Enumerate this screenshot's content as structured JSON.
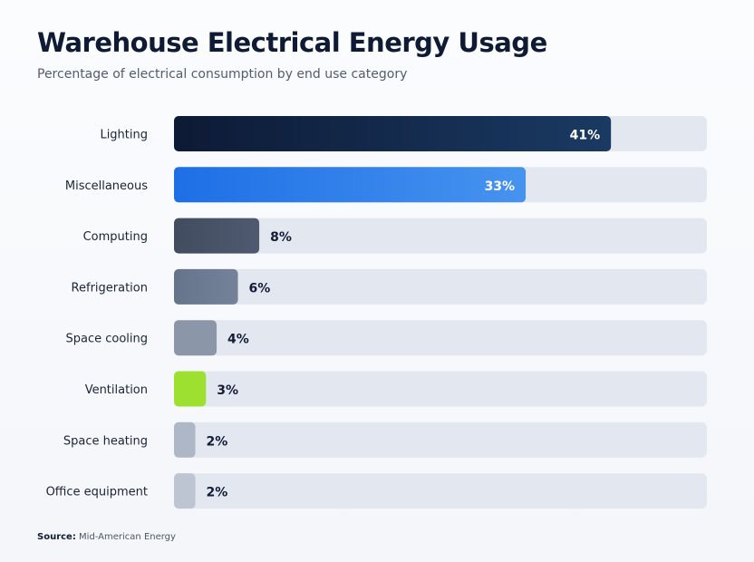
{
  "title": "Warehouse Electrical Energy Usage",
  "subtitle": "Percentage of electrical consumption by end use category",
  "source": {
    "label": "Source:",
    "text": "Mid-American Energy"
  },
  "colors": {
    "track": "#e3e8f0",
    "label": "#1a2438",
    "value_dark": "#121c36",
    "value_light": "#ffffff",
    "bars": {
      "Lighting": [
        "#0d1a35",
        "#1a3a63"
      ],
      "Miscellaneous": [
        "#1e6fe6",
        "#4693ef"
      ],
      "Computing": [
        "#414c5f",
        "#4f5a70"
      ],
      "Refrigeration": [
        "#65748b",
        "#75839a"
      ],
      "Space cooling": [
        "#8b97a9",
        "#8b97a9"
      ],
      "Ventilation": [
        "#9de02f",
        "#9de02f"
      ],
      "Space heating": [
        "#adb7c6",
        "#adb7c6"
      ],
      "Office equipment": [
        "#bcc5d1",
        "#bcc5d1"
      ]
    }
  },
  "chart_data": {
    "type": "bar",
    "orientation": "horizontal",
    "title": "Warehouse Electrical Energy Usage",
    "subtitle": "Percentage of electrical consumption by end use category",
    "xlabel": "",
    "ylabel": "",
    "xlim": [
      0,
      50
    ],
    "grid": false,
    "categories": [
      "Lighting",
      "Miscellaneous",
      "Computing",
      "Refrigeration",
      "Space cooling",
      "Ventilation",
      "Space heating",
      "Office equipment"
    ],
    "values": [
      41,
      33,
      8,
      6,
      4,
      3,
      2,
      2
    ],
    "value_labels": [
      "41%",
      "33%",
      "8%",
      "6%",
      "4%",
      "3%",
      "2%",
      "2%"
    ]
  }
}
